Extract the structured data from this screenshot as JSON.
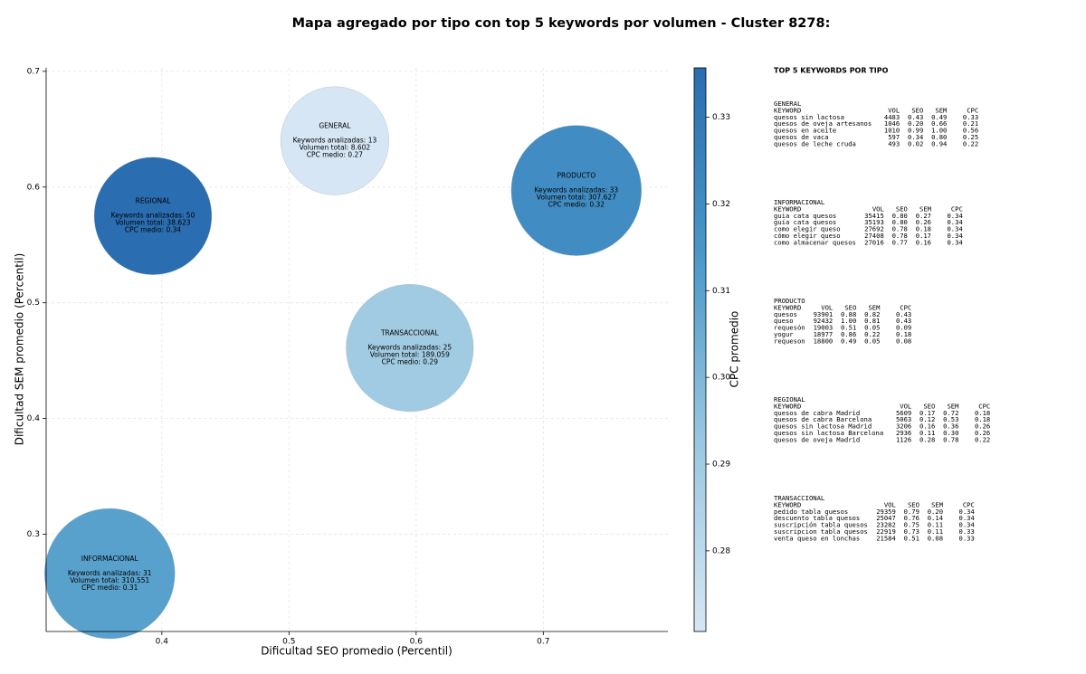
{
  "chart_data": {
    "type": "scatter",
    "title": "Mapa agregado por tipo con top 5 keywords por volumen - Cluster 8278:",
    "xlabel": "Dificultad SEO promedio (Percentil)",
    "ylabel": "Dificultad SEM promedio (Percentil)",
    "colorbar_label": "CPC promedio",
    "xlim": [
      0.309,
      0.798
    ],
    "ylim": [
      0.216,
      0.703
    ],
    "xticks": [
      0.4,
      0.5,
      0.6,
      0.7
    ],
    "yticks": [
      0.3,
      0.4,
      0.5,
      0.6,
      0.7
    ],
    "clim": [
      0.2707,
      0.3357
    ],
    "cticks": [
      0.28,
      0.29,
      {
        "value": 0.3,
        "label": "0.30"
      },
      0.31,
      0.32,
      0.33
    ],
    "colormap": [
      "#d6e6f4",
      "#9ac8e0",
      "#4a98c9",
      "#2a6db0"
    ],
    "grid": true,
    "points": [
      {
        "name": "GENERAL",
        "x": 0.536,
        "y": 0.64,
        "keywords": 13,
        "volume": 8602,
        "cpc": 0.27,
        "value_labels": [
          "Keywords analizadas: 13",
          "Volumen total: 8.602",
          "CPC medio: 0.27"
        ]
      },
      {
        "name": "REGIONAL",
        "x": 0.393,
        "y": 0.575,
        "keywords": 50,
        "volume": 38623,
        "cpc": 0.34,
        "value_labels": [
          "Keywords analizadas: 50",
          "Volumen total: 38.623",
          "CPC medio: 0.34"
        ]
      },
      {
        "name": "PRODUCTO",
        "x": 0.726,
        "y": 0.597,
        "keywords": 33,
        "volume": 307627,
        "cpc": 0.32,
        "value_labels": [
          "Keywords analizadas: 33",
          "Volumen total: 307.627",
          "CPC medio: 0.32"
        ]
      },
      {
        "name": "TRANSACCIONAL",
        "x": 0.595,
        "y": 0.461,
        "keywords": 25,
        "volume": 189059,
        "cpc": 0.29,
        "value_labels": [
          "Keywords analizadas: 25",
          "Volumen total: 189.059",
          "CPC medio: 0.29"
        ]
      },
      {
        "name": "INFORMACIONAL",
        "x": 0.359,
        "y": 0.266,
        "keywords": 31,
        "volume": 310551,
        "cpc": 0.31,
        "value_labels": [
          "Keywords analizadas: 31",
          "Volumen total: 310.551",
          "CPC medio: 0.31"
        ]
      }
    ]
  },
  "panel": {
    "title": "TOP 5 KEYWORDS POR TIPO",
    "header": [
      "KEYWORD",
      "VOL",
      "SEO",
      "SEM",
      "CPC"
    ],
    "groups": [
      {
        "name": "GENERAL",
        "rows": [
          [
            "quesos sin lactosa",
            "4483",
            "0.43",
            "0.49",
            "0.33"
          ],
          [
            "quesos de oveja artesanos",
            "1046",
            "0.20",
            "0.66",
            "0.21"
          ],
          [
            "quesos en aceite",
            "1010",
            "0.99",
            "1.00",
            "0.56"
          ],
          [
            "quesos de vaca",
            "597",
            "0.34",
            "0.80",
            "0.25"
          ],
          [
            "quesos de leche cruda",
            "493",
            "0.02",
            "0.94",
            "0.22"
          ]
        ]
      },
      {
        "name": "INFORMACIONAL",
        "rows": [
          [
            "guia cata quesos",
            "35415",
            "0.80",
            "0.27",
            "0.34"
          ],
          [
            "guía cata quesos",
            "35193",
            "0.80",
            "0.26",
            "0.34"
          ],
          [
            "como elegir queso",
            "27692",
            "0.78",
            "0.18",
            "0.34"
          ],
          [
            "cómo elegir queso",
            "27408",
            "0.78",
            "0.17",
            "0.34"
          ],
          [
            "como almacenar quesos",
            "27016",
            "0.77",
            "0.16",
            "0.34"
          ]
        ]
      },
      {
        "name": "PRODUCTO",
        "rows": [
          [
            "quesos",
            "93901",
            "0.88",
            "0.82",
            "0.43"
          ],
          [
            "queso",
            "92432",
            "1.00",
            "0.81",
            "0.43"
          ],
          [
            "requesón",
            "19003",
            "0.51",
            "0.05",
            "0.09"
          ],
          [
            "yogur",
            "18977",
            "0.86",
            "0.22",
            "0.18"
          ],
          [
            "requeson",
            "18800",
            "0.49",
            "0.05",
            "0.08"
          ]
        ]
      },
      {
        "name": "REGIONAL",
        "rows": [
          [
            "quesos de cabra Madrid",
            "5609",
            "0.17",
            "0.72",
            "0.18"
          ],
          [
            "quesos de cabra Barcelona",
            "5063",
            "0.12",
            "0.53",
            "0.18"
          ],
          [
            "quesos sin lactosa Madrid",
            "3206",
            "0.16",
            "0.36",
            "0.26"
          ],
          [
            "quesos sin lactosa Barcelona",
            "2936",
            "0.11",
            "0.30",
            "0.26"
          ],
          [
            "quesos de oveja Madrid",
            "1126",
            "0.28",
            "0.78",
            "0.22"
          ]
        ]
      },
      {
        "name": "TRANSACCIONAL",
        "rows": [
          [
            "pedido tabla quesos",
            "29359",
            "0.79",
            "0.20",
            "0.34"
          ],
          [
            "descuento tabla quesos",
            "25047",
            "0.76",
            "0.14",
            "0.34"
          ],
          [
            "suscripción tabla quesos",
            "23282",
            "0.75",
            "0.11",
            "0.34"
          ],
          [
            "suscripcion tabla quesos",
            "22919",
            "0.73",
            "0.11",
            "0.33"
          ],
          [
            "venta queso en lonchas",
            "21584",
            "0.51",
            "0.08",
            "0.33"
          ]
        ]
      }
    ]
  }
}
